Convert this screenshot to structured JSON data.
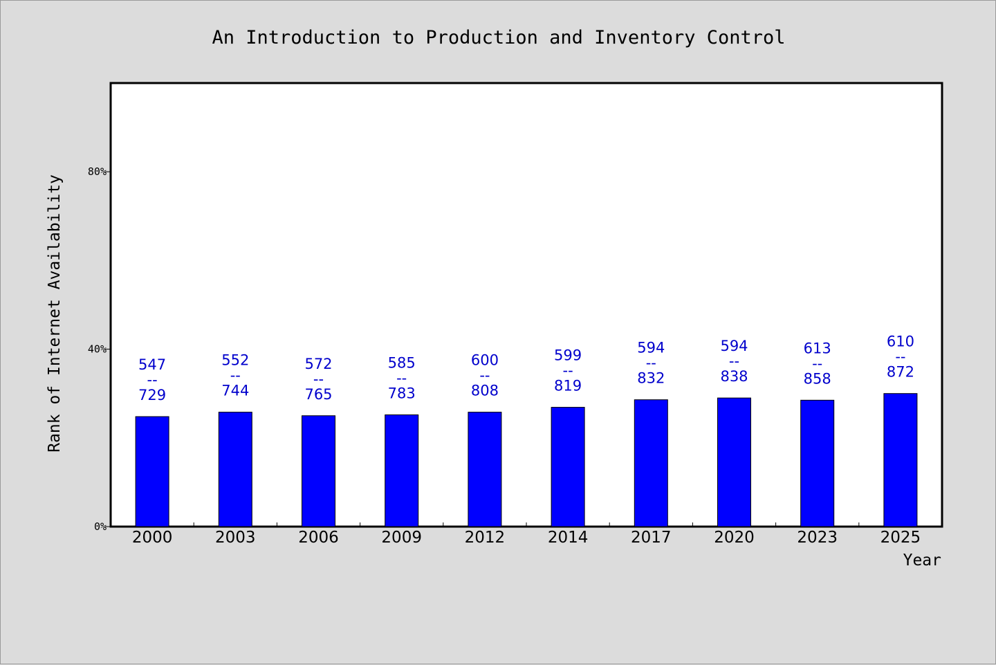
{
  "chart_data": {
    "type": "bar",
    "title": "An Introduction to Production and Inventory Control",
    "xlabel": "Year",
    "ylabel": "Rank of Internet Availability",
    "categories": [
      "2000",
      "2003",
      "2006",
      "2009",
      "2012",
      "2014",
      "2017",
      "2020",
      "2023",
      "2025"
    ],
    "values": [
      24.8,
      25.8,
      25.0,
      25.2,
      25.8,
      26.9,
      28.6,
      29.0,
      28.5,
      30.0
    ],
    "label_top": [
      "547",
      "552",
      "572",
      "585",
      "600",
      "599",
      "594",
      "594",
      "613",
      "610"
    ],
    "label_separator": "--",
    "label_bottom": [
      "729",
      "744",
      "765",
      "783",
      "808",
      "819",
      "832",
      "838",
      "858",
      "872"
    ],
    "ylim": [
      0,
      100
    ],
    "yticks": [
      0,
      40,
      80
    ],
    "ytick_labels": [
      "0%",
      "40%",
      "80%"
    ],
    "grid": false,
    "colors": {
      "bar": "#0000ff",
      "label": "#0000cc",
      "axis": "#000000",
      "plot_background": "#ffffff",
      "page_background": "#dcdcdc"
    }
  }
}
